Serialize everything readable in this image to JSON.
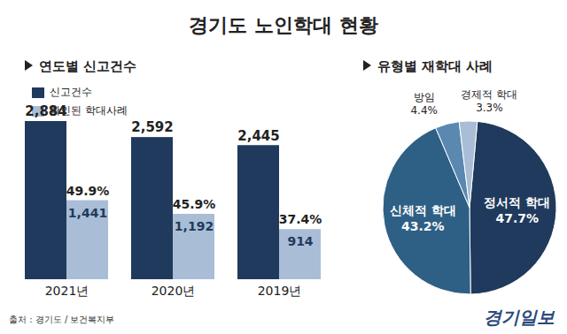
{
  "title": "경기도 노인학대 현황",
  "source": "출처 : 경기도 / 보건복지부",
  "credit": "경기일보",
  "chart_data": [
    {
      "type": "bar",
      "title": "연도별 신고건수",
      "categories": [
        "2021년",
        "2020년",
        "2019년"
      ],
      "series": [
        {
          "name": "신고건수",
          "color": "#1f3a5c",
          "values": [
            2884,
            2592,
            2445
          ],
          "value_labels": [
            "2,884",
            "2,592",
            "2,445"
          ]
        },
        {
          "name": "확인된 학대사례",
          "color": "#a9bdd6",
          "values": [
            1441,
            1192,
            914
          ],
          "value_labels": [
            "1,441",
            "1,192",
            "914"
          ]
        }
      ],
      "percentages": [
        49.9,
        45.9,
        37.4
      ],
      "percentage_labels": [
        "49.9%",
        "45.9%",
        "37.4%"
      ],
      "ylim": [
        0,
        2900
      ],
      "data_labels": true,
      "tick_labels": "x",
      "legend": "top-left",
      "grid": false
    },
    {
      "type": "pie",
      "title": "유형별 재학대 사례",
      "categories": [
        "정서적 학대",
        "신체적 학대",
        "방임",
        "경제적 학대"
      ],
      "values": [
        47.7,
        43.2,
        4.4,
        3.3
      ],
      "value_labels": [
        "47.7%",
        "43.2%",
        "4.4%",
        "3.3%"
      ],
      "colors": [
        "#1f3a5c",
        "#2e5f84",
        "#5a88b0",
        "#a9bdd6"
      ],
      "data_labels": true
    }
  ]
}
